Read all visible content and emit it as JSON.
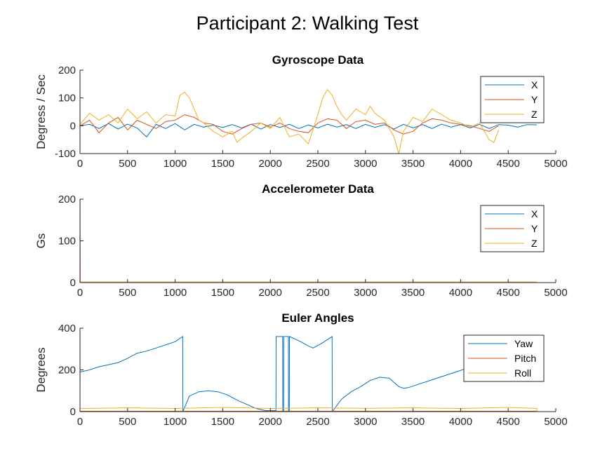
{
  "figure_title": "Participant 2: Walking Test",
  "colors": {
    "x": "#0072BD",
    "y": "#D95319",
    "z": "#EDB120"
  },
  "chart_data": [
    {
      "type": "line",
      "title": "Gyroscope Data",
      "xlabel": "",
      "ylabel": "Degress / Sec",
      "xlim": [
        0,
        5000
      ],
      "ylim": [
        -100,
        200
      ],
      "xticks": [
        "0",
        "500",
        "1000",
        "1500",
        "2000",
        "2500",
        "3000",
        "3500",
        "4000",
        "4500",
        "5000"
      ],
      "yticks": [
        "-100",
        "0",
        "100",
        "200"
      ],
      "legend_position": "top-right",
      "series": [
        {
          "name": "X",
          "color": "#0072BD",
          "x": [
            0,
            100,
            200,
            300,
            400,
            500,
            600,
            700,
            800,
            900,
            1000,
            1100,
            1200,
            1300,
            1400,
            1500,
            1600,
            1700,
            1800,
            1900,
            2000,
            2100,
            2200,
            2300,
            2400,
            2500,
            2600,
            2700,
            2800,
            2900,
            3000,
            3100,
            3200,
            3300,
            3400,
            3500,
            3600,
            3700,
            3800,
            3900,
            4000,
            4100,
            4200,
            4300,
            4400,
            4500,
            4600,
            4700,
            4800
          ],
          "y": [
            0,
            5,
            -10,
            8,
            -12,
            6,
            -8,
            -40,
            5,
            -10,
            8,
            -15,
            5,
            -5,
            2,
            -6,
            4,
            -8,
            6,
            -12,
            4,
            -6,
            5,
            -10,
            3,
            -8,
            6,
            -5,
            4,
            -10,
            5,
            -6,
            4,
            -12,
            5,
            -8,
            4,
            -10,
            6,
            -5,
            4,
            -8,
            5,
            -10,
            4,
            2,
            -5,
            4,
            3
          ]
        },
        {
          "name": "Y",
          "color": "#D95319",
          "x": [
            0,
            100,
            200,
            300,
            400,
            500,
            600,
            700,
            800,
            900,
            1000,
            1100,
            1200,
            1300,
            1400,
            1500,
            1600,
            1700,
            1800,
            1900,
            2000,
            2100,
            2200,
            2300,
            2400,
            2500,
            2600,
            2700,
            2800,
            2900,
            3000,
            3100,
            3200,
            3300,
            3400,
            3500,
            3600,
            3700,
            3800,
            3900,
            4000,
            4100,
            4200,
            4300,
            4400
          ],
          "y": [
            0,
            20,
            -25,
            10,
            30,
            -15,
            20,
            5,
            -10,
            15,
            20,
            40,
            30,
            10,
            5,
            -20,
            -30,
            -10,
            5,
            10,
            -5,
            10,
            -10,
            -20,
            -25,
            10,
            25,
            20,
            -10,
            15,
            20,
            5,
            10,
            -15,
            -30,
            -20,
            10,
            25,
            20,
            10,
            5,
            0,
            -10,
            -20,
            0
          ]
        },
        {
          "name": "Z",
          "color": "#EDB120",
          "x": [
            0,
            100,
            200,
            300,
            400,
            500,
            600,
            700,
            800,
            900,
            1000,
            1050,
            1100,
            1150,
            1200,
            1250,
            1300,
            1400,
            1500,
            1600,
            1650,
            1700,
            1800,
            1900,
            2000,
            2100,
            2200,
            2300,
            2400,
            2500,
            2550,
            2600,
            2650,
            2700,
            2750,
            2800,
            2900,
            3000,
            3050,
            3100,
            3200,
            3300,
            3350,
            3400,
            3500,
            3600,
            3700,
            3800,
            3900,
            4000,
            4100,
            4200,
            4300,
            4350,
            4400
          ],
          "y": [
            5,
            45,
            20,
            40,
            10,
            60,
            25,
            50,
            10,
            40,
            35,
            110,
            120,
            100,
            60,
            20,
            10,
            -20,
            -40,
            -20,
            -60,
            -45,
            -20,
            10,
            -10,
            30,
            -40,
            -30,
            -65,
            40,
            100,
            130,
            110,
            70,
            40,
            20,
            60,
            40,
            70,
            45,
            20,
            -40,
            -100,
            -20,
            30,
            15,
            60,
            40,
            20,
            10,
            -5,
            10,
            -50,
            -60,
            -15
          ]
        }
      ]
    },
    {
      "type": "line",
      "title": "Accelerometer Data",
      "xlabel": "",
      "ylabel": "Gs",
      "xlim": [
        0,
        5000
      ],
      "ylim": [
        0,
        200
      ],
      "xticks": [
        "0",
        "500",
        "1000",
        "1500",
        "2000",
        "2500",
        "3000",
        "3500",
        "4000",
        "4500",
        "5000"
      ],
      "yticks": [
        "0",
        "100",
        "200"
      ],
      "legend_position": "top-right",
      "series": [
        {
          "name": "X",
          "color": "#0072BD",
          "x": [
            0,
            4800
          ],
          "y": [
            1,
            1
          ]
        },
        {
          "name": "Y",
          "color": "#D95319",
          "x": [
            0,
            1,
            2,
            4800
          ],
          "y": [
            200,
            200,
            1,
            1
          ]
        },
        {
          "name": "Z",
          "color": "#EDB120",
          "x": [
            0,
            4800
          ],
          "y": [
            1,
            1
          ]
        }
      ]
    },
    {
      "type": "line",
      "title": "Euler Angles",
      "xlabel": "",
      "ylabel": "Degrees",
      "xlim": [
        0,
        5000
      ],
      "ylim": [
        0,
        400
      ],
      "xticks": [
        "0",
        "500",
        "1000",
        "1500",
        "2000",
        "2500",
        "3000",
        "3500",
        "4000",
        "4500",
        "5000"
      ],
      "yticks": [
        "0",
        "200",
        "400"
      ],
      "legend_position": "top-right",
      "series": [
        {
          "name": "Yaw",
          "color": "#0072BD",
          "x": [
            0,
            1,
            100,
            200,
            300,
            400,
            500,
            600,
            700,
            800,
            900,
            1000,
            1080,
            1081,
            1150,
            1250,
            1350,
            1450,
            1550,
            1650,
            1750,
            1850,
            1950,
            2050,
            2060,
            2061,
            2130,
            2131,
            2140,
            2141,
            2190,
            2191,
            2200,
            2201,
            2300,
            2400,
            2450,
            2550,
            2650,
            2651,
            2750,
            2850,
            2950,
            3050,
            3150,
            3250,
            3350,
            3400,
            3450,
            3550,
            3650,
            3750,
            3850,
            3950,
            4050
          ],
          "y": [
            0,
            190,
            200,
            215,
            225,
            235,
            255,
            280,
            290,
            305,
            320,
            335,
            360,
            0,
            75,
            95,
            100,
            95,
            80,
            55,
            35,
            15,
            5,
            5,
            5,
            360,
            360,
            0,
            0,
            360,
            360,
            0,
            0,
            360,
            340,
            315,
            305,
            330,
            360,
            0,
            60,
            95,
            120,
            150,
            165,
            160,
            120,
            112,
            115,
            130,
            145,
            160,
            175,
            190,
            205
          ]
        },
        {
          "name": "Pitch",
          "color": "#D95319",
          "x": [
            0,
            4800
          ],
          "y": [
            2,
            2
          ]
        },
        {
          "name": "Roll",
          "color": "#EDB120",
          "x": [
            0,
            500,
            1000,
            1500,
            2000,
            2500,
            3000,
            3500,
            4000,
            4500,
            4800,
            4801
          ],
          "y": [
            15,
            18,
            15,
            20,
            15,
            18,
            16,
            18,
            15,
            20,
            15,
            0
          ]
        }
      ]
    }
  ]
}
